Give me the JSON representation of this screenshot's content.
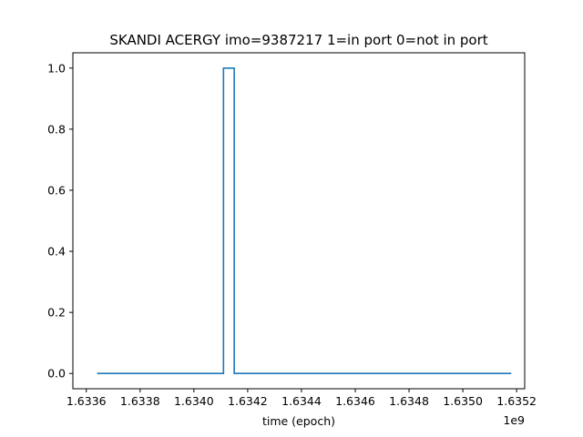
{
  "chart_data": {
    "type": "line",
    "drawstyle": "steps",
    "title": "SKANDI ACERGY imo=9387217 1=in port 0=not in port",
    "xlabel": "time (epoch)",
    "ylabel": "",
    "x_offset_label": "1e9",
    "xlim": [
      1.63355,
      1.63353
    ],
    "ylim": [
      -0.05,
      1.05
    ],
    "grid": false,
    "x_ticks": [
      1.6336,
      1.6338,
      1.634,
      1.6342,
      1.6344,
      1.6346,
      1.6348,
      1.635,
      1.6352
    ],
    "x_tick_labels": [
      "1.6336",
      "1.6338",
      "1.6340",
      "1.6342",
      "1.6344",
      "1.6346",
      "1.6348",
      "1.6350",
      "1.6352"
    ],
    "y_ticks": [
      0.0,
      0.2,
      0.4,
      0.6,
      0.8,
      1.0
    ],
    "y_tick_labels": [
      "0.0",
      "0.2",
      "0.4",
      "0.6",
      "0.8",
      "1.0"
    ],
    "series": [
      {
        "color": "#1f77b4",
        "x": [
          1.63364,
          1.63411,
          1.63411,
          1.63415,
          1.63415,
          1.63518
        ],
        "y": [
          0,
          0,
          1,
          1,
          0,
          0
        ]
      }
    ]
  }
}
